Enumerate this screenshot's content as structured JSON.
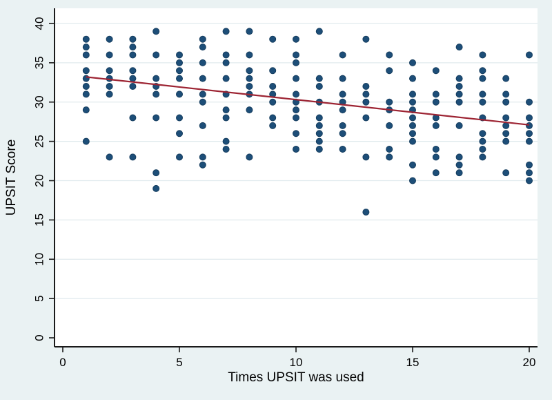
{
  "figure": {
    "background_color": "#eaf2f3",
    "plot_background_color": "#ffffff",
    "grid_color": "#e0eaed",
    "axis_color": "#1a1a1a",
    "text_color": "#000000",
    "dot_color": "#1d4e78",
    "dot_edge_color": "#163d5e",
    "fit_line_color": "#9d2433"
  },
  "chart_data": {
    "type": "scatter",
    "title": "",
    "xlabel": "Times UPSIT was used",
    "ylabel": "UPSIT Score",
    "xlim": [
      -0.4,
      20.4
    ],
    "ylim": [
      -1.2,
      42
    ],
    "x_ticks": [
      0,
      5,
      10,
      15,
      20
    ],
    "y_ticks": [
      0,
      5,
      10,
      15,
      20,
      25,
      30,
      35,
      40
    ],
    "grid": "horizontal-major",
    "legend": "none",
    "series": [
      {
        "name": "UPSIT scores",
        "type": "scatter",
        "columns": [
          {
            "x": 1,
            "scores": [
              38,
              37,
              36,
              34,
              33,
              32,
              31,
              29,
              25
            ]
          },
          {
            "x": 2,
            "scores": [
              38,
              36,
              34,
              33,
              32,
              31,
              23
            ]
          },
          {
            "x": 3,
            "scores": [
              38,
              37,
              36,
              34,
              33,
              32,
              28,
              23
            ]
          },
          {
            "x": 4,
            "scores": [
              39,
              36,
              33,
              32,
              31,
              28,
              21,
              19
            ]
          },
          {
            "x": 5,
            "scores": [
              36,
              35,
              34,
              33,
              31,
              28,
              26,
              23
            ]
          },
          {
            "x": 6,
            "scores": [
              38,
              37,
              35,
              33,
              31,
              30,
              27,
              23,
              22
            ]
          },
          {
            "x": 7,
            "scores": [
              39,
              36,
              35,
              33,
              31,
              29,
              28,
              25,
              24
            ]
          },
          {
            "x": 8,
            "scores": [
              39,
              36,
              34,
              33,
              32,
              31,
              29,
              23
            ]
          },
          {
            "x": 9,
            "scores": [
              38,
              34,
              32,
              31,
              30,
              28,
              27
            ]
          },
          {
            "x": 10,
            "scores": [
              38,
              36,
              35,
              33,
              31,
              30,
              29,
              28,
              26,
              24
            ]
          },
          {
            "x": 11,
            "scores": [
              39,
              33,
              32,
              30,
              28,
              27,
              26,
              25,
              24
            ]
          },
          {
            "x": 12,
            "scores": [
              36,
              33,
              31,
              30,
              29,
              27,
              26,
              24
            ]
          },
          {
            "x": 13,
            "scores": [
              38,
              32,
              31,
              30,
              28,
              23,
              16
            ]
          },
          {
            "x": 14,
            "scores": [
              36,
              34,
              30,
              29,
              27,
              24,
              23
            ]
          },
          {
            "x": 15,
            "scores": [
              35,
              33,
              31,
              30,
              29,
              28,
              27,
              26,
              25,
              22,
              20
            ]
          },
          {
            "x": 16,
            "scores": [
              34,
              31,
              30,
              28,
              27,
              24,
              23,
              21
            ]
          },
          {
            "x": 17,
            "scores": [
              37,
              33,
              32,
              31,
              30,
              27,
              23,
              22,
              21
            ]
          },
          {
            "x": 18,
            "scores": [
              36,
              34,
              33,
              31,
              30,
              28,
              26,
              25,
              24,
              23
            ]
          },
          {
            "x": 19,
            "scores": [
              33,
              31,
              30,
              28,
              27,
              26,
              25,
              21
            ]
          },
          {
            "x": 20,
            "scores": [
              36,
              30,
              28,
              27,
              26,
              25,
              22,
              21,
              20
            ]
          }
        ]
      },
      {
        "name": "Linear fit",
        "type": "line",
        "from": [
          1,
          33.2
        ],
        "to": [
          20,
          27.1
        ]
      }
    ]
  }
}
